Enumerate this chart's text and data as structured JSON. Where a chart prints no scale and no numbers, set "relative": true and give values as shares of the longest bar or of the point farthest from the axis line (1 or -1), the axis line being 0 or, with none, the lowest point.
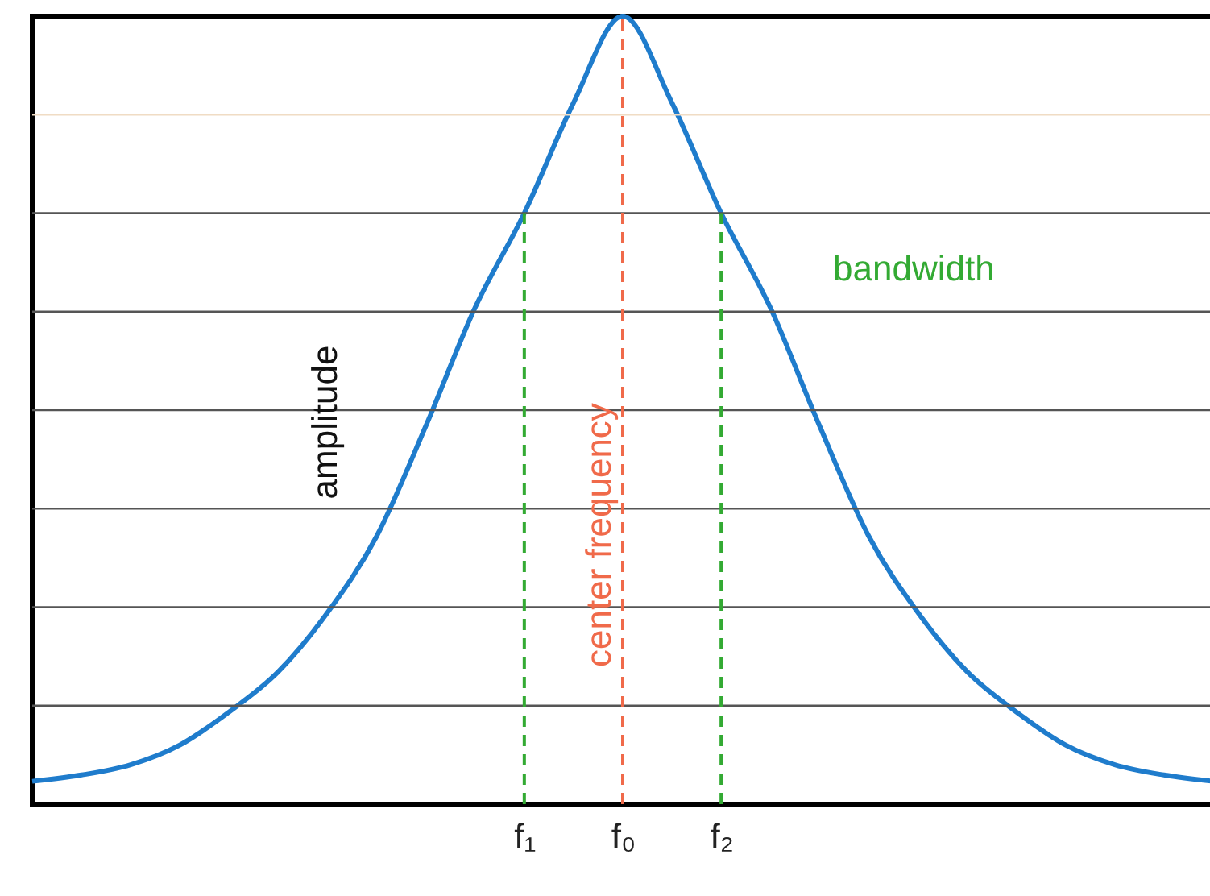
{
  "chart_data": {
    "type": "line",
    "relative": true,
    "categories": [
      null,
      null,
      null,
      null,
      null,
      null,
      null,
      null,
      null,
      null,
      "f₁",
      null,
      "f₀",
      null,
      "f₂",
      null,
      null,
      null,
      null,
      null,
      null,
      null,
      null,
      null,
      null
    ],
    "series": [
      {
        "color": "#1f7ccc",
        "values": [
          0.029,
          0.037,
          0.05,
          0.075,
          0.117,
          0.168,
          0.243,
          0.34,
          0.48,
          0.63,
          0.75,
          0.89,
          1,
          0.89,
          0.75,
          0.63,
          0.48,
          0.34,
          0.243,
          0.168,
          0.117,
          0.075,
          0.05,
          0.037,
          0.029
        ]
      }
    ],
    "ref_lines": [
      {
        "axis": "y",
        "value": 0.875,
        "color": "#f0dcc4"
      },
      {
        "axis": "y",
        "value": 0.75,
        "color": "#555555"
      },
      {
        "axis": "y",
        "value": 0.625,
        "color": "#555555"
      },
      {
        "axis": "y",
        "value": 0.5,
        "color": "#555555"
      },
      {
        "axis": "y",
        "value": 0.375,
        "color": "#555555"
      },
      {
        "axis": "y",
        "value": 0.25,
        "color": "#555555"
      },
      {
        "axis": "y",
        "value": 0.125,
        "color": "#555555"
      },
      {
        "axis": "x",
        "value": "f₁",
        "color": "#33aa33",
        "line_style": "dashed"
      },
      {
        "axis": "x",
        "value": "f₀",
        "color": "#f06a4a",
        "line_style": "dashed"
      },
      {
        "axis": "x",
        "value": "f₂",
        "color": "#33aa33",
        "line_style": "dashed"
      }
    ],
    "annotations": [
      "amplitude",
      "center frequency",
      "bandwidth"
    ]
  }
}
